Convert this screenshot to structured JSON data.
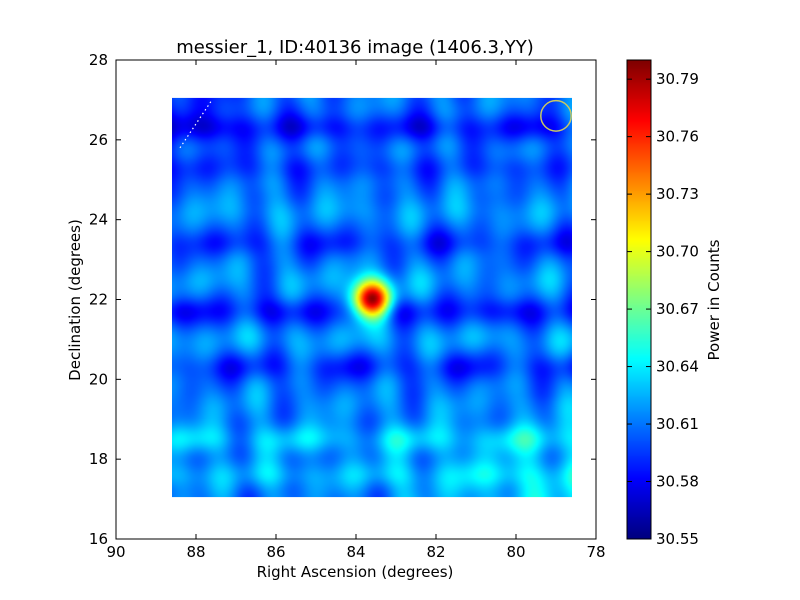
{
  "chart_data": {
    "type": "heatmap",
    "title": "messier_1, ID:40136 image (1406.3,YY)",
    "xlabel": "Right Ascension (degrees)",
    "ylabel": "Declination (degrees)",
    "colorbar_label": "Power in Counts",
    "xlim": [
      90,
      78
    ],
    "ylim": [
      16,
      28
    ],
    "x_ticks": [
      90,
      88,
      86,
      84,
      82,
      80,
      78
    ],
    "y_ticks": [
      16,
      18,
      20,
      22,
      24,
      26,
      28
    ],
    "x_tick_labels": [
      "90",
      "88",
      "86",
      "84",
      "82",
      "80",
      "78"
    ],
    "y_tick_labels": [
      "16",
      "18",
      "20",
      "22",
      "24",
      "26",
      "28"
    ],
    "colorbar_ticks": [
      30.55,
      30.58,
      30.61,
      30.64,
      30.67,
      30.7,
      30.73,
      30.76,
      30.79
    ],
    "colorbar_tick_labels": [
      "30.55",
      "30.58",
      "30.61",
      "30.64",
      "30.67",
      "30.70",
      "30.73",
      "30.76",
      "30.79"
    ],
    "color_range": [
      30.55,
      30.8
    ],
    "colormap": "jet",
    "image_extent": {
      "ra": [
        88.6,
        78.6
      ],
      "dec": [
        17.05,
        27.05
      ]
    },
    "grid": false,
    "peak": {
      "ra": 83.6,
      "dec": 22.0,
      "value": 30.8
    },
    "background_level": 30.61,
    "bands": [
      {
        "dec": 26.3,
        "delta": -0.03
      },
      {
        "dec": 25.3,
        "delta": -0.015
      },
      {
        "dec": 24.2,
        "delta": 0.01
      },
      {
        "dec": 23.4,
        "delta": -0.02
      },
      {
        "dec": 22.5,
        "delta": 0.008
      },
      {
        "dec": 21.7,
        "delta": -0.03
      },
      {
        "dec": 21.0,
        "delta": 0.012
      },
      {
        "dec": 20.3,
        "delta": -0.022
      },
      {
        "dec": 19.4,
        "delta": 0.005
      },
      {
        "dec": 18.5,
        "delta": 0.025
      },
      {
        "dec": 17.6,
        "delta": 0.02
      }
    ],
    "annotations": [
      {
        "type": "circle",
        "ra": 79.0,
        "dec": 26.6,
        "radius_deg": 0.38,
        "color": "#c8c864"
      },
      {
        "type": "dotted-line",
        "ra": [
          88.4,
          87.6
        ],
        "dec": [
          25.8,
          27.0
        ],
        "color": "#ffffff"
      }
    ]
  }
}
